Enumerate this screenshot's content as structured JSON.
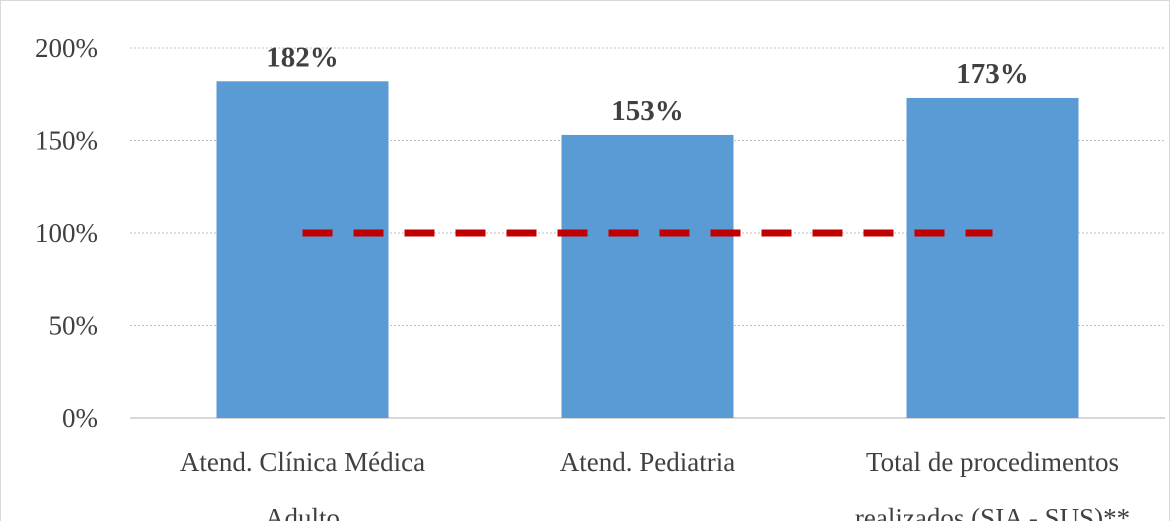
{
  "chart_data": {
    "type": "bar",
    "title": "",
    "xlabel": "",
    "ylabel": "",
    "categories": [
      [
        "Atend. Clínica Médica",
        "Adulto"
      ],
      [
        "Atend. Pediatria"
      ],
      [
        "Total de procedimentos",
        "realizados (SIA - SUS)**"
      ]
    ],
    "values": [
      182,
      153,
      173
    ],
    "data_labels": [
      "182%",
      "153%",
      "173%"
    ],
    "ylim": [
      0,
      200
    ],
    "yticks": [
      0,
      50,
      100,
      150,
      200
    ],
    "ytick_labels": [
      "0%",
      "50%",
      "100%",
      "150%",
      "200%"
    ],
    "reference_line": {
      "value": 100,
      "style": "dashed"
    },
    "grid": true,
    "legend": "none",
    "colors": {
      "bar": "#5B9BD5",
      "reference_line": "#C00000",
      "grid": "#BFBFBF",
      "text": "#404040"
    }
  }
}
